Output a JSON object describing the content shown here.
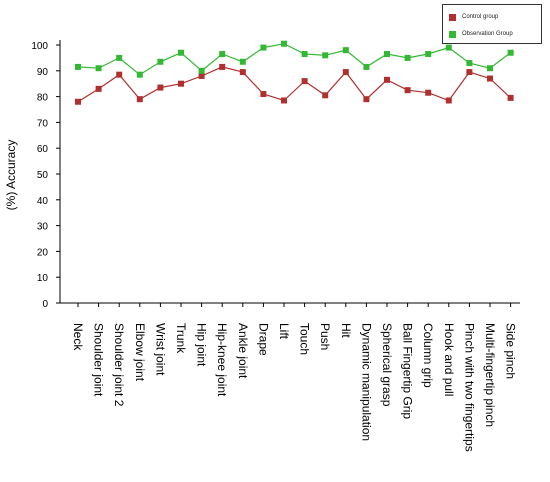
{
  "chart_data": {
    "type": "line",
    "title": "",
    "xlabel": "",
    "ylabel": "(%)  Accuracy",
    "ylim": [
      0,
      100
    ],
    "yticks": [
      0,
      10,
      20,
      30,
      40,
      50,
      60,
      70,
      80,
      90,
      100
    ],
    "grid": false,
    "legend_position": "top-right",
    "categories": [
      "Neck",
      "Shoulder joint",
      "Shoulder joint 2",
      "Elbow joint",
      "Wrist joint",
      "Trunk",
      "Hip joint",
      "Hip-knee joint",
      "Ankle joint",
      "Drape",
      "Lift",
      "Touch",
      "Push",
      "Hit",
      "Dynamic manipulation",
      "Spherical grasp",
      "Ball Fingertip Grip",
      "Column grip",
      "Hook and pull",
      "Pinch with two fingertips",
      "Multi-fingertip pinch",
      "Side pinch"
    ],
    "series": [
      {
        "name": "Control group",
        "color": "#b03030",
        "values": [
          78,
          83,
          88.5,
          79,
          83.5,
          85,
          88,
          91.5,
          89.5,
          81,
          78.5,
          86,
          80.5,
          89.5,
          79,
          86.5,
          82.5,
          81.5,
          78.5,
          89.5,
          87,
          79.5
        ]
      },
      {
        "name": "Observation Group",
        "color": "#33b833",
        "values": [
          91.5,
          91,
          95,
          88.5,
          93.5,
          97,
          90,
          96.5,
          93.5,
          99,
          100.5,
          96.5,
          96,
          98,
          91.5,
          96.5,
          95,
          96.5,
          99,
          93,
          91,
          97
        ]
      }
    ]
  }
}
